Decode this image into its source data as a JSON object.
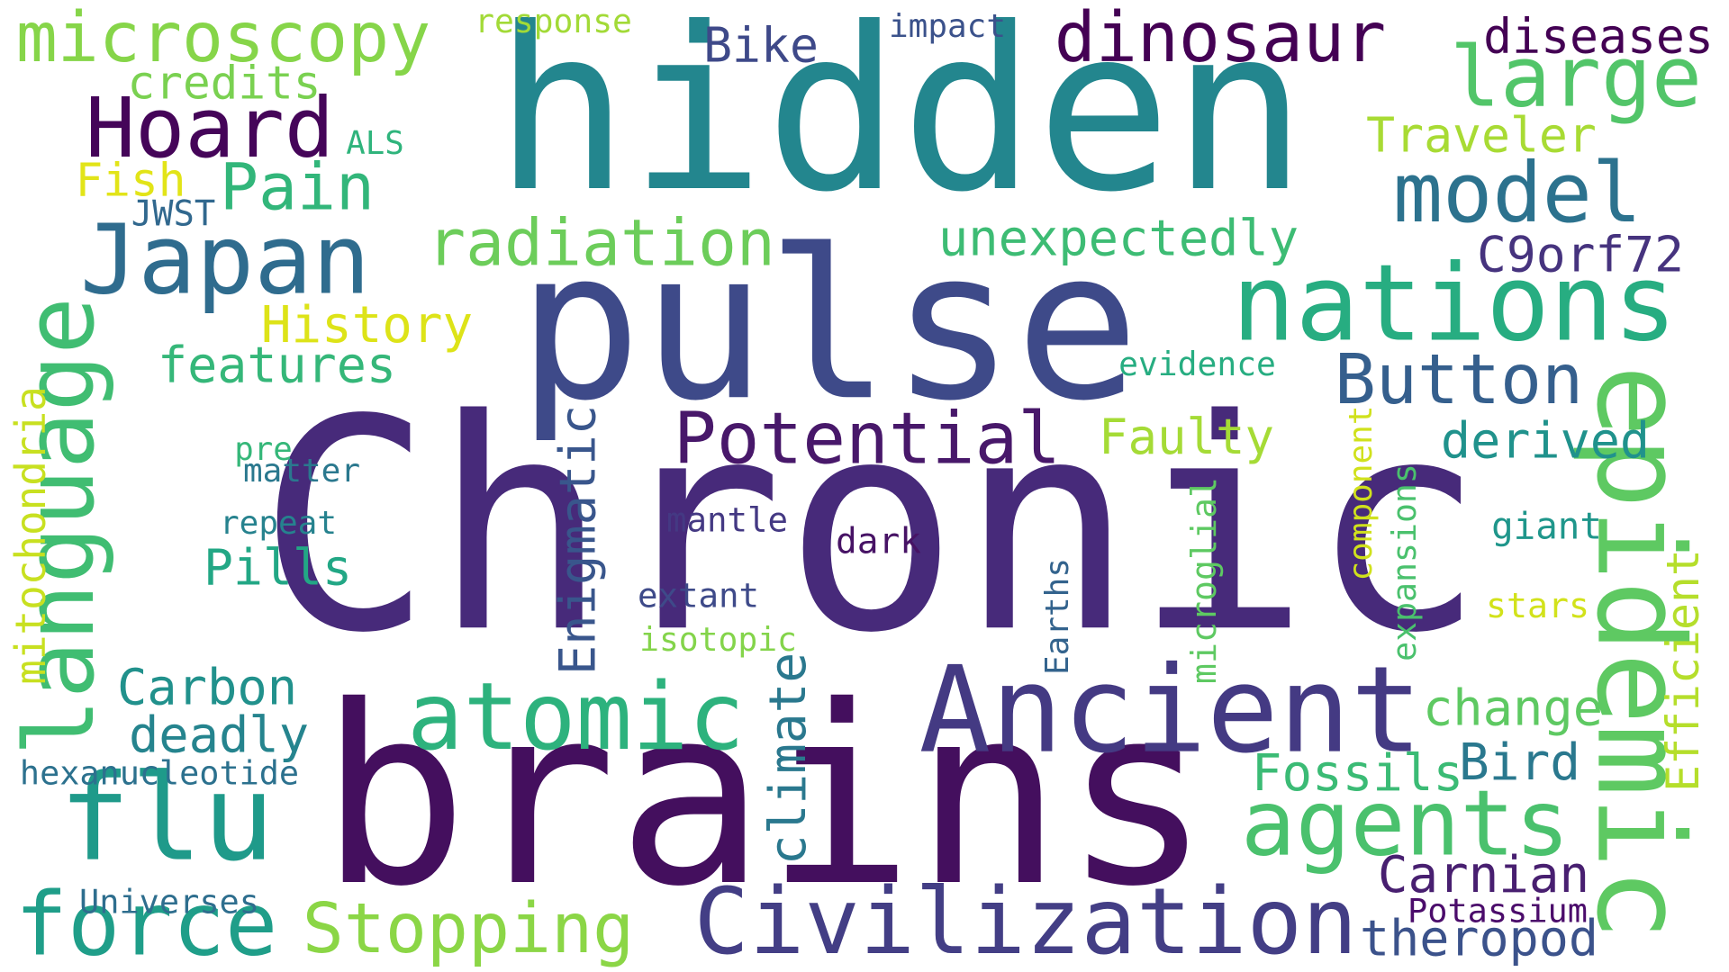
{
  "words": [
    {
      "text": "Chronic",
      "color": "#472a7a",
      "rotate": 0
    },
    {
      "text": "hidden",
      "color": "#23868e",
      "rotate": 0
    },
    {
      "text": "pulse",
      "color": "#3e4a89",
      "rotate": 0
    },
    {
      "text": "brains",
      "color": "#440f5e",
      "rotate": 0
    },
    {
      "text": "Japan",
      "color": "#2f6c8e",
      "rotate": 0
    },
    {
      "text": "nations",
      "color": "#27ad81",
      "rotate": 0
    },
    {
      "text": "epidemic",
      "color": "#5ec962",
      "rotate": 90
    },
    {
      "text": "Ancient",
      "color": "#443a83",
      "rotate": 0
    },
    {
      "text": "Civilization",
      "color": "#433e85",
      "rotate": 0
    },
    {
      "text": "flu",
      "color": "#1f9a8a",
      "rotate": 0
    },
    {
      "text": "language",
      "color": "#40bd72",
      "rotate": 270
    },
    {
      "text": "atomic",
      "color": "#2db27d",
      "rotate": 0
    },
    {
      "text": "agents",
      "color": "#4ac16d",
      "rotate": 0
    },
    {
      "text": "force",
      "color": "#1f9e89",
      "rotate": 0
    },
    {
      "text": "microscopy",
      "color": "#86d549",
      "rotate": 0
    },
    {
      "text": "dinosaur",
      "color": "#440154",
      "rotate": 0
    },
    {
      "text": "Hoard",
      "color": "#450559",
      "rotate": 0
    },
    {
      "text": "large",
      "color": "#52c569",
      "rotate": 0
    },
    {
      "text": "model",
      "color": "#2c728e",
      "rotate": 0
    },
    {
      "text": "Potential",
      "color": "#48186a",
      "rotate": 0
    },
    {
      "text": "Stopping",
      "color": "#8bd646",
      "rotate": 0
    },
    {
      "text": "radiation",
      "color": "#6ccd5a",
      "rotate": 0
    },
    {
      "text": "Button",
      "color": "#355f8d",
      "rotate": 0
    },
    {
      "text": "Pain",
      "color": "#32b67a",
      "rotate": 0
    },
    {
      "text": "Enigmatic",
      "color": "#39568c",
      "rotate": 270
    },
    {
      "text": "climate",
      "color": "#2a788e",
      "rotate": 270
    },
    {
      "text": "Carbon",
      "color": "#21918c",
      "rotate": 0
    },
    {
      "text": "deadly",
      "color": "#25848e",
      "rotate": 0
    },
    {
      "text": "Pills",
      "color": "#22a785",
      "rotate": 0
    },
    {
      "text": "features",
      "color": "#35b779",
      "rotate": 0
    },
    {
      "text": "History",
      "color": "#dde318",
      "rotate": 0
    },
    {
      "text": "Fossils",
      "color": "#3bbb75",
      "rotate": 0
    },
    {
      "text": "Bird",
      "color": "#2a788e",
      "rotate": 0
    },
    {
      "text": "Carnian",
      "color": "#481f70",
      "rotate": 0
    },
    {
      "text": "theropod",
      "color": "#3b528b",
      "rotate": 0
    },
    {
      "text": "change",
      "color": "#5ec962",
      "rotate": 0
    },
    {
      "text": "derived",
      "color": "#20928c",
      "rotate": 0
    },
    {
      "text": "Faulty",
      "color": "#a5db36",
      "rotate": 0
    },
    {
      "text": "unexpectedly",
      "color": "#3dbc74",
      "rotate": 0
    },
    {
      "text": "C9orf72",
      "color": "#46337e",
      "rotate": 0
    },
    {
      "text": "Traveler",
      "color": "#a8db34",
      "rotate": 0
    },
    {
      "text": "diseases",
      "color": "#440154",
      "rotate": 0
    },
    {
      "text": "credits",
      "color": "#7ad151",
      "rotate": 0
    },
    {
      "text": "Bike",
      "color": "#3e4989",
      "rotate": 0
    },
    {
      "text": "Fish",
      "color": "#e2e418",
      "rotate": 0
    },
    {
      "text": "Efficient",
      "color": "#b5de2b",
      "rotate": 270
    },
    {
      "text": "mitochondria",
      "color": "#c8e020",
      "rotate": 270
    },
    {
      "text": "hexanucleotide",
      "color": "#2c718e",
      "rotate": 0
    },
    {
      "text": "Universes",
      "color": "#2e6e8e",
      "rotate": 0
    },
    {
      "text": "Potassium",
      "color": "#4b0c6b",
      "rotate": 0
    },
    {
      "text": "response",
      "color": "#a2da37",
      "rotate": 0
    },
    {
      "text": "impact",
      "color": "#3b528b",
      "rotate": 0
    },
    {
      "text": "ALS",
      "color": "#2fb47c",
      "rotate": 0
    },
    {
      "text": "JWST",
      "color": "#31688e",
      "rotate": 0
    },
    {
      "text": "evidence",
      "color": "#27ad81",
      "rotate": 0
    },
    {
      "text": "pre",
      "color": "#35b779",
      "rotate": 0
    },
    {
      "text": "matter",
      "color": "#2a788e",
      "rotate": 0
    },
    {
      "text": "repeat",
      "color": "#26828e",
      "rotate": 0
    },
    {
      "text": "mantle",
      "color": "#443983",
      "rotate": 0
    },
    {
      "text": "dark",
      "color": "#471365",
      "rotate": 0
    },
    {
      "text": "extant",
      "color": "#3e4a89",
      "rotate": 0
    },
    {
      "text": "isotopic",
      "color": "#84d44b",
      "rotate": 0
    },
    {
      "text": "microglial",
      "color": "#5ec962",
      "rotate": 270
    },
    {
      "text": "Earths",
      "color": "#33638d",
      "rotate": 270
    },
    {
      "text": "component",
      "color": "#d0e11c",
      "rotate": 270
    },
    {
      "text": "expansions",
      "color": "#4ac16d",
      "rotate": 270
    },
    {
      "text": "giant",
      "color": "#1f968b",
      "rotate": 0
    },
    {
      "text": "stars",
      "color": "#d2e21b",
      "rotate": 0
    }
  ]
}
